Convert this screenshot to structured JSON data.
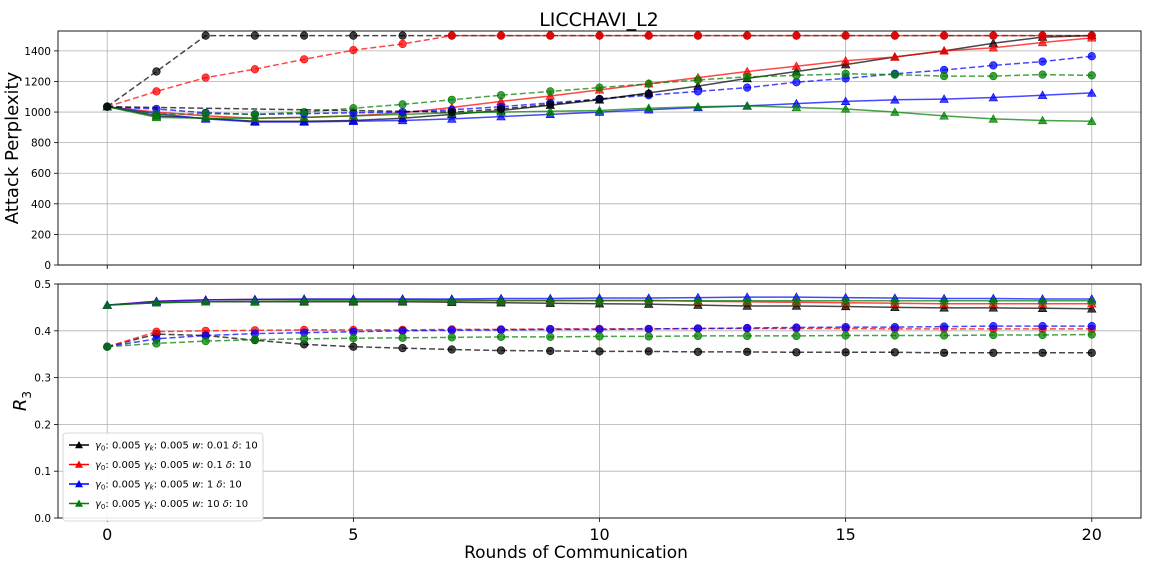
{
  "chart_data": [
    {
      "type": "line",
      "title": "LICCHAVI_L2",
      "xlabel": "",
      "ylabel": "Attack Perplexity",
      "xlim": [
        -1,
        21
      ],
      "ylim": [
        0,
        1530
      ],
      "xticks": [
        0,
        5,
        10,
        15,
        20
      ],
      "yticks": [
        0,
        200,
        400,
        600,
        800,
        1000,
        1200,
        1400
      ],
      "grid": true,
      "x": [
        0,
        1,
        2,
        3,
        4,
        5,
        6,
        7,
        8,
        9,
        10,
        11,
        12,
        13,
        14,
        15,
        16,
        17,
        18,
        19,
        20
      ],
      "series": [
        {
          "color": "#000000",
          "style": "solid",
          "marker": "triangle",
          "values": [
            1035,
            975,
            960,
            940,
            940,
            945,
            960,
            985,
            1010,
            1045,
            1080,
            1125,
            1170,
            1220,
            1265,
            1310,
            1360,
            1400,
            1450,
            1490,
            1500
          ]
        },
        {
          "color": "#ff0000",
          "style": "solid",
          "marker": "triangle",
          "values": [
            1035,
            1000,
            975,
            960,
            965,
            975,
            995,
            1030,
            1070,
            1105,
            1145,
            1185,
            1225,
            1265,
            1300,
            1335,
            1360,
            1400,
            1420,
            1455,
            1485
          ]
        },
        {
          "color": "#0000ff",
          "style": "solid",
          "marker": "triangle",
          "values": [
            1035,
            990,
            955,
            935,
            935,
            940,
            945,
            955,
            970,
            985,
            1000,
            1015,
            1030,
            1040,
            1055,
            1070,
            1080,
            1085,
            1095,
            1110,
            1125
          ]
        },
        {
          "color": "#008000",
          "style": "solid",
          "marker": "triangle",
          "values": [
            1035,
            965,
            960,
            960,
            965,
            975,
            985,
            995,
            1000,
            1005,
            1010,
            1025,
            1035,
            1040,
            1030,
            1020,
            1000,
            975,
            955,
            945,
            940
          ]
        },
        {
          "color": "#000000",
          "style": "dashed",
          "marker": "circle",
          "values": [
            1035,
            1265,
            1500,
            1500,
            1500,
            1500,
            1500,
            1500,
            1500,
            1500,
            1500,
            1500,
            1500,
            1500,
            1500,
            1500,
            1500,
            1500,
            1500,
            1500,
            1500
          ]
        },
        {
          "color": "#ff0000",
          "style": "dashed",
          "marker": "circle",
          "values": [
            1035,
            1135,
            1225,
            1280,
            1345,
            1405,
            1445,
            1500,
            1500,
            1500,
            1500,
            1500,
            1500,
            1500,
            1500,
            1500,
            1500,
            1500,
            1500,
            1500,
            1500
          ]
        },
        {
          "color": "#0000ff",
          "style": "dashed",
          "marker": "circle",
          "values": [
            1035,
            1020,
            995,
            985,
            990,
            995,
            1000,
            1015,
            1035,
            1060,
            1085,
            1110,
            1135,
            1160,
            1195,
            1220,
            1250,
            1275,
            1305,
            1330,
            1365
          ]
        },
        {
          "color": "#008000",
          "style": "dashed",
          "marker": "circle",
          "values": [
            1035,
            985,
            990,
            985,
            1000,
            1025,
            1050,
            1080,
            1110,
            1135,
            1160,
            1185,
            1210,
            1230,
            1240,
            1250,
            1245,
            1235,
            1235,
            1245,
            1240
          ]
        },
        {
          "color": "#000000",
          "style": "dashed",
          "marker": "circle",
          "values": [
            1035,
            null,
            null,
            null,
            null,
            null,
            null,
            1000,
            1020,
            1050,
            1085,
            1120,
            null,
            null,
            null,
            null,
            null,
            null,
            null,
            null,
            null
          ]
        }
      ]
    },
    {
      "type": "line",
      "title": "",
      "xlabel": "Rounds of Communication",
      "ylabel": "R3",
      "ylabel_base": "R",
      "ylabel_sub": "3",
      "xlim": [
        -1,
        21
      ],
      "ylim": [
        0,
        0.5
      ],
      "xticks": [
        0,
        5,
        10,
        15,
        20
      ],
      "yticks": [
        "0.0",
        "0.1",
        "0.2",
        "0.3",
        "0.4",
        "0.5"
      ],
      "grid": true,
      "legend_position": "bottom-left",
      "x": [
        0,
        1,
        2,
        3,
        4,
        5,
        6,
        7,
        8,
        9,
        10,
        11,
        12,
        13,
        14,
        15,
        16,
        17,
        18,
        19,
        20
      ],
      "series": [
        {
          "color": "#000000",
          "style": "solid",
          "marker": "triangle",
          "values": [
            0.455,
            0.46,
            0.462,
            0.462,
            0.462,
            0.462,
            0.462,
            0.461,
            0.46,
            0.459,
            0.458,
            0.457,
            0.455,
            0.453,
            0.453,
            0.452,
            0.45,
            0.449,
            0.449,
            0.448,
            0.447
          ]
        },
        {
          "color": "#ff0000",
          "style": "solid",
          "marker": "triangle",
          "values": [
            0.455,
            0.463,
            0.466,
            0.467,
            0.467,
            0.467,
            0.467,
            0.466,
            0.465,
            0.465,
            0.465,
            0.465,
            0.463,
            0.462,
            0.461,
            0.46,
            0.459,
            0.458,
            0.458,
            0.458,
            0.458
          ]
        },
        {
          "color": "#0000ff",
          "style": "solid",
          "marker": "triangle",
          "values": [
            0.455,
            0.463,
            0.466,
            0.467,
            0.468,
            0.468,
            0.468,
            0.468,
            0.469,
            0.469,
            0.47,
            0.47,
            0.471,
            0.472,
            0.472,
            0.471,
            0.47,
            0.469,
            0.469,
            0.468,
            0.468
          ]
        },
        {
          "color": "#008000",
          "style": "solid",
          "marker": "triangle",
          "values": [
            0.455,
            0.46,
            0.462,
            0.463,
            0.464,
            0.464,
            0.464,
            0.464,
            0.464,
            0.464,
            0.464,
            0.464,
            0.464,
            0.464,
            0.464,
            0.464,
            0.464,
            0.464,
            0.464,
            0.464,
            0.464
          ]
        },
        {
          "color": "#000000",
          "style": "dashed",
          "marker": "circle",
          "values": [
            0.366,
            0.393,
            0.39,
            0.38,
            0.371,
            0.366,
            0.363,
            0.36,
            0.358,
            0.357,
            0.356,
            0.356,
            0.355,
            0.355,
            0.354,
            0.354,
            0.354,
            0.353,
            0.353,
            0.353,
            0.353
          ]
        },
        {
          "color": "#ff0000",
          "style": "dashed",
          "marker": "circle",
          "values": [
            0.366,
            0.398,
            0.4,
            0.401,
            0.402,
            0.402,
            0.402,
            0.403,
            0.403,
            0.404,
            0.404,
            0.404,
            0.405,
            0.405,
            0.405,
            0.405,
            0.404,
            0.404,
            0.404,
            0.404,
            0.404
          ]
        },
        {
          "color": "#0000ff",
          "style": "dashed",
          "marker": "circle",
          "values": [
            0.366,
            0.383,
            0.39,
            0.394,
            0.396,
            0.398,
            0.4,
            0.401,
            0.402,
            0.403,
            0.403,
            0.404,
            0.405,
            0.406,
            0.407,
            0.408,
            0.408,
            0.409,
            0.41,
            0.41,
            0.41
          ]
        },
        {
          "color": "#008000",
          "style": "dashed",
          "marker": "circle",
          "values": [
            0.366,
            0.373,
            0.378,
            0.381,
            0.383,
            0.384,
            0.385,
            0.386,
            0.387,
            0.387,
            0.388,
            0.388,
            0.389,
            0.389,
            0.389,
            0.39,
            0.39,
            0.39,
            0.391,
            0.391,
            0.392
          ]
        }
      ],
      "legend": [
        {
          "color": "#000000",
          "g0": "0.005",
          "gk": "0.005",
          "w": "0.01",
          "d": "10"
        },
        {
          "color": "#ff0000",
          "g0": "0.005",
          "gk": "0.005",
          "w": "0.1",
          "d": "10"
        },
        {
          "color": "#0000ff",
          "g0": "0.005",
          "gk": "0.005",
          "w": "1",
          "d": "10"
        },
        {
          "color": "#008000",
          "g0": "0.005",
          "gk": "0.005",
          "w": "10",
          "d": "10"
        }
      ]
    }
  ]
}
